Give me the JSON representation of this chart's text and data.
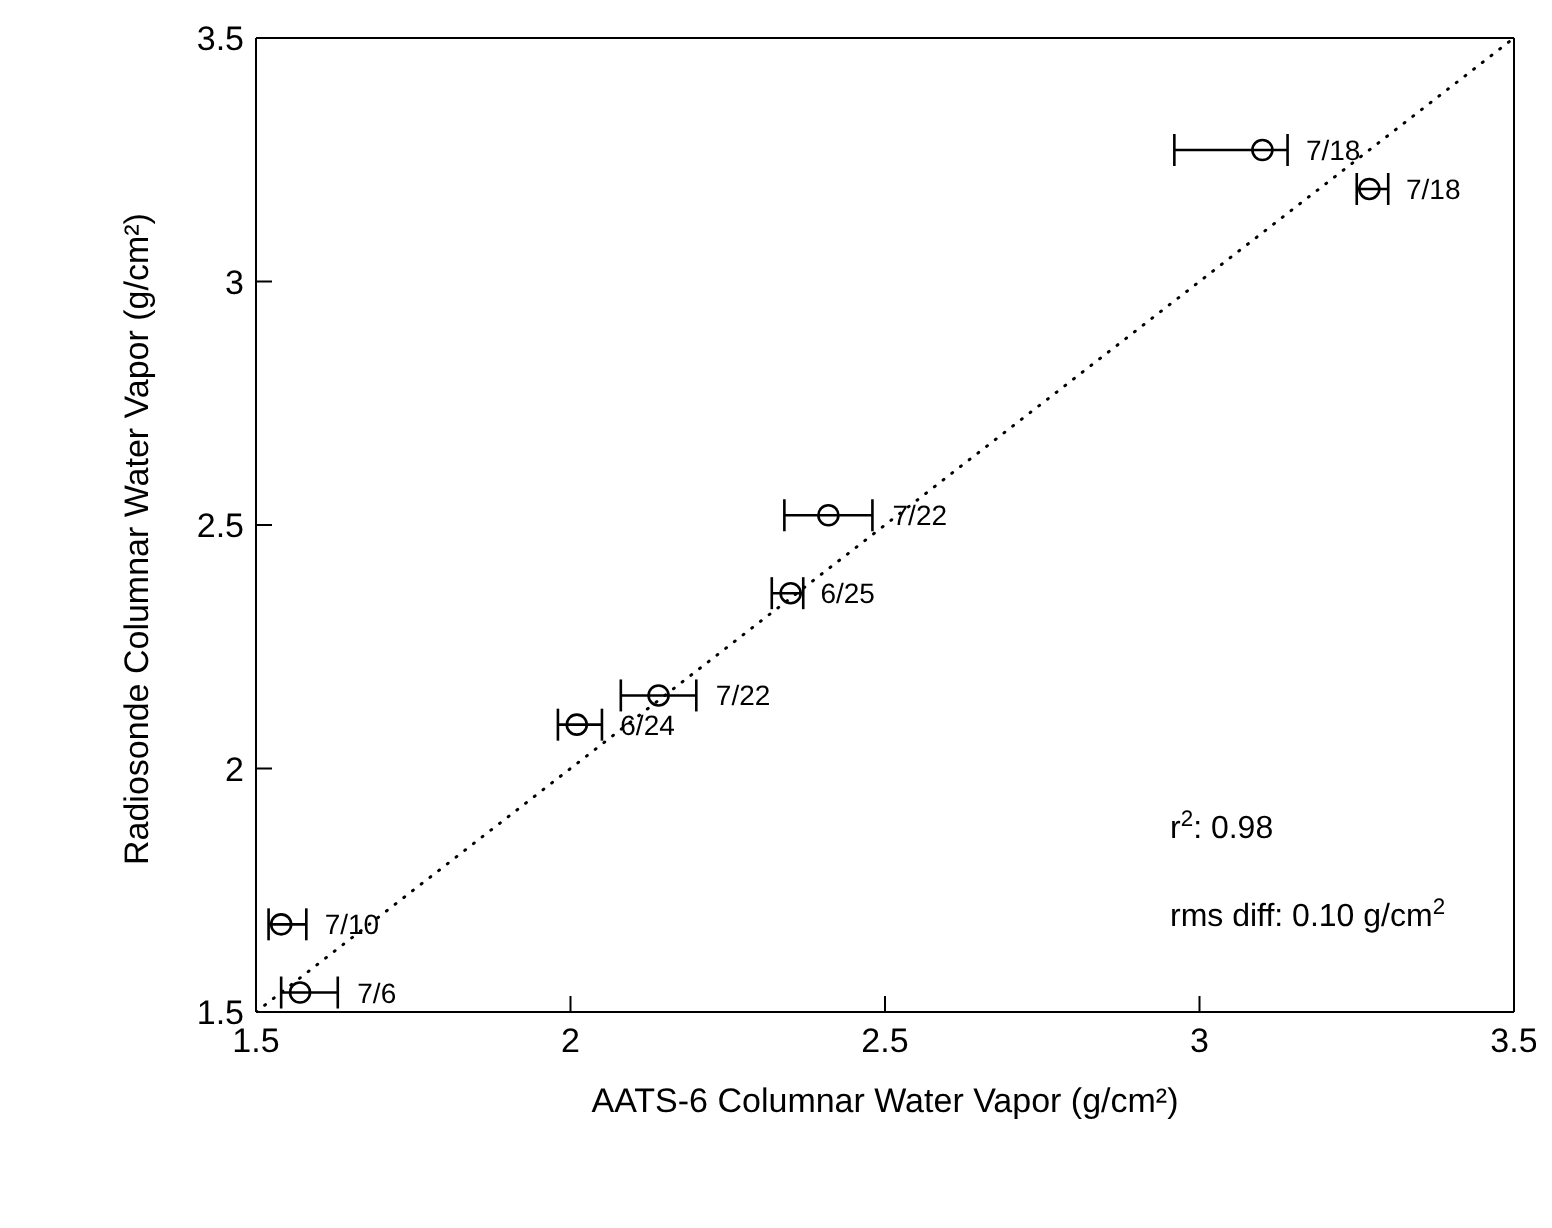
{
  "chart_data": {
    "type": "scatter",
    "xlabel": "AATS-6 Columnar Water Vapor (g/cm²)",
    "ylabel": "Radiosonde Columnar Water Vapor (g/cm²)",
    "xlim": [
      1.5,
      3.5
    ],
    "xticks": [
      1.5,
      2,
      2.5,
      3,
      3.5
    ],
    "ylim": [
      1.5,
      3.5
    ],
    "yticks": [
      1.5,
      2,
      2.5,
      3,
      3.5
    ],
    "grid": false,
    "marker": "circle",
    "series": [
      {
        "color": "#000000",
        "x": [
          3.1,
          3.27,
          2.41,
          2.35,
          2.14,
          2.01,
          1.54,
          1.57
        ],
        "values": [
          3.27,
          3.19,
          2.52,
          2.36,
          2.15,
          2.09,
          1.68,
          1.54
        ],
        "xerrors": [
          [
            2.96,
            3.14
          ],
          [
            3.25,
            3.3
          ],
          [
            2.34,
            2.48
          ],
          [
            2.32,
            2.37
          ],
          [
            2.08,
            2.2
          ],
          [
            1.98,
            2.05
          ],
          [
            1.52,
            1.58
          ],
          [
            1.54,
            1.63
          ]
        ]
      },
      {
        "type": "line",
        "color": "#000000",
        "line_style": "dotted",
        "marker": "none",
        "x": [
          1.5,
          3.5
        ],
        "values": [
          1.5,
          3.5
        ]
      }
    ],
    "annotations": [
      {
        "text": "7/18",
        "x": 3.1,
        "y": 3.27
      },
      {
        "text": "7/18",
        "x": 3.27,
        "y": 3.19
      },
      {
        "text": "7/22",
        "x": 2.41,
        "y": 2.52
      },
      {
        "text": "6/25",
        "x": 2.35,
        "y": 2.36
      },
      {
        "text": "7/22",
        "x": 2.14,
        "y": 2.15
      },
      {
        "text": "6/24",
        "x": 2.01,
        "y": 2.09
      },
      {
        "text": "7/10",
        "x": 1.54,
        "y": 1.68
      },
      {
        "text": "7/6",
        "x": 1.57,
        "y": 1.54
      },
      "r$^{2}$: 0.98",
      "rms diff: 0.10 g/cm$^{2}$"
    ]
  }
}
